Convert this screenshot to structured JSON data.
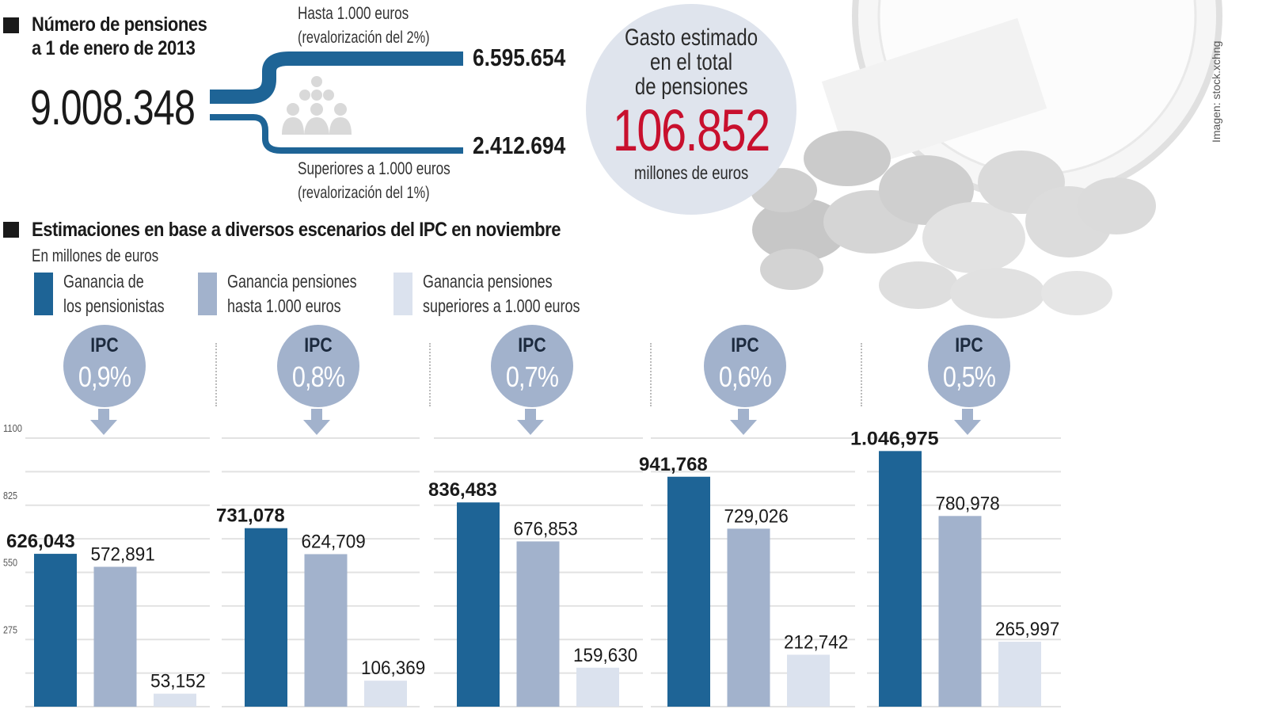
{
  "pensions": {
    "section_title_line1": "Número de pensiones",
    "section_title_line2": "a 1 de enero de 2013",
    "total": "9.008.348",
    "upper_branch": {
      "label_line1": "Hasta 1.000 euros",
      "label_line2": "(revalorización del 2%)",
      "value": "6.595.654"
    },
    "lower_branch": {
      "label_line1": "Superiores a 1.000 euros",
      "label_line2": "(revalorización del 1%)",
      "value": "2.412.694"
    },
    "people_icon": "people-group-icon"
  },
  "spending": {
    "label_line1": "Gasto estimado",
    "label_line2": "en el total",
    "label_line3": "de pensiones",
    "value": "106.852",
    "unit": "millones de euros"
  },
  "image_credit": "Imagen: stock.xchng",
  "colors": {
    "dark_blue": "#1e6496",
    "mid_blue": "#a2b2cc",
    "light_blue": "#dbe2ee",
    "accent_red": "#c8102e",
    "ipc_circle": "#a2b2cc"
  },
  "chart_data": {
    "type": "bar",
    "title": "Estimaciones en base a diversos escenarios del IPC en noviembre",
    "subtitle": "En millones de euros",
    "xlabel": "",
    "ylabel": "",
    "ylim": [
      0,
      1100
    ],
    "yticks": [
      0,
      275,
      550,
      825,
      1100
    ],
    "ytick_labels": [
      "275",
      "550",
      "825",
      "1100"
    ],
    "grid": true,
    "legend_position": "top-left",
    "categories": [
      "IPC 0,9%",
      "IPC 0,8%",
      "IPC 0,7%",
      "IPC 0,6%",
      "IPC 0,5%"
    ],
    "category_badges": [
      {
        "label": "IPC",
        "value": "0,9%"
      },
      {
        "label": "IPC",
        "value": "0,8%"
      },
      {
        "label": "IPC",
        "value": "0,7%"
      },
      {
        "label": "IPC",
        "value": "0,6%"
      },
      {
        "label": "IPC",
        "value": "0,5%"
      }
    ],
    "series": [
      {
        "name": "Ganancia de los pensionistas",
        "legend_line1": "Ganancia de",
        "legend_line2": "los pensionistas",
        "color": "#1e6496",
        "values": [
          626.043,
          731.078,
          836.483,
          941.768,
          1046.975
        ],
        "labels": [
          "626,043",
          "731,078",
          "836,483",
          "941,768",
          "1.046,975"
        ]
      },
      {
        "name": "Ganancia pensiones hasta 1.000 euros",
        "legend_line1": "Ganancia pensiones",
        "legend_line2": "hasta 1.000 euros",
        "color": "#a2b2cc",
        "values": [
          572.891,
          624.709,
          676.853,
          729.026,
          780.978
        ],
        "labels": [
          "572,891",
          "624,709",
          "676,853",
          "729,026",
          "780,978"
        ]
      },
      {
        "name": "Ganancia pensiones superiores a 1.000 euros",
        "legend_line1": "Ganancia pensiones",
        "legend_line2": "superiores a 1.000 euros",
        "color": "#dbe2ee",
        "values": [
          53.152,
          106.369,
          159.63,
          212.742,
          265.997
        ],
        "labels": [
          "53,152",
          "106,369",
          "159,630",
          "212,742",
          "265,997"
        ]
      }
    ]
  }
}
